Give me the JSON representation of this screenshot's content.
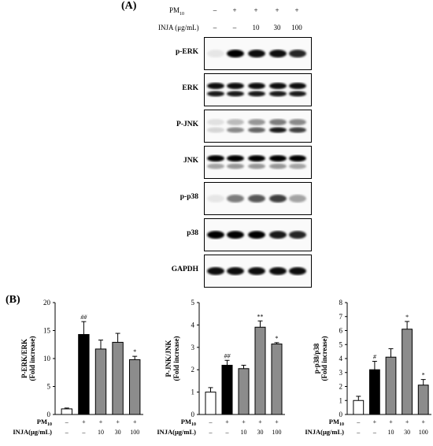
{
  "panel_a": {
    "letter": "(A)",
    "conditions": {
      "pm_label": "PM",
      "pm_sub": "10",
      "pm_values": [
        "–",
        "+",
        "+",
        "+",
        "+"
      ],
      "inja_label": "INJA (μg/mL)",
      "inja_values": [
        "–",
        "–",
        "10",
        "30",
        "100"
      ]
    },
    "blots": [
      {
        "label": "p-ERK",
        "bands": [
          0.08,
          1.0,
          0.95,
          0.95,
          0.85
        ],
        "band2": null
      },
      {
        "label": "ERK",
        "bands": [
          0.95,
          0.95,
          0.95,
          0.95,
          0.95
        ],
        "band2": [
          0.9,
          0.9,
          0.9,
          0.9,
          0.9
        ]
      },
      {
        "label": "P-JNK",
        "bands": [
          0.1,
          0.25,
          0.4,
          0.5,
          0.45
        ],
        "band2": [
          0.15,
          0.45,
          0.6,
          0.9,
          0.75
        ]
      },
      {
        "label": "JNK",
        "bands": [
          1.0,
          1.0,
          1.0,
          1.0,
          1.0
        ],
        "band2": [
          0.35,
          0.4,
          0.4,
          0.4,
          0.35
        ]
      },
      {
        "label": "p-p38",
        "bands": [
          0.08,
          0.5,
          0.65,
          0.75,
          0.35
        ],
        "band2": null
      },
      {
        "label": "p38",
        "bands": [
          1.0,
          1.0,
          1.0,
          0.9,
          0.85
        ],
        "band2": null
      },
      {
        "label": "GAPDH",
        "bands": [
          0.95,
          0.95,
          0.95,
          0.95,
          0.95
        ],
        "band2": null
      }
    ]
  },
  "panel_b": {
    "letter": "(B)",
    "x_pm_label": "PM",
    "x_pm_sub": "10",
    "x_inja_label": "INJA(μg/mL)",
    "pm_values": [
      "–",
      "+",
      "+",
      "+",
      "+"
    ],
    "inja_values": [
      "–",
      "–",
      "10",
      "30",
      "100"
    ],
    "bar_colors": [
      "#ffffff",
      "#000000",
      "#8c8c8c",
      "#8c8c8c",
      "#8c8c8c"
    ]
  },
  "chart_data": [
    {
      "type": "bar",
      "ylabel": "P-ERK/ERK",
      "ylabel2": "(Fold increase)",
      "ylim": [
        0,
        20
      ],
      "yticks": [
        0,
        5,
        10,
        15,
        20
      ],
      "values": [
        1.0,
        14.3,
        11.7,
        12.9,
        9.8
      ],
      "errors": [
        0.15,
        2.3,
        1.6,
        1.6,
        0.6
      ],
      "annotations": [
        "",
        "##",
        "",
        "",
        "*"
      ]
    },
    {
      "type": "bar",
      "ylabel": "P-JNK/JNK",
      "ylabel2": "(Fold increase)",
      "ylim": [
        0,
        5
      ],
      "yticks": [
        0,
        1,
        2,
        3,
        4,
        5
      ],
      "values": [
        1.0,
        2.2,
        2.05,
        3.9,
        3.15
      ],
      "errors": [
        0.2,
        0.22,
        0.15,
        0.28,
        0.06
      ],
      "annotations": [
        "",
        "##",
        "",
        "**",
        "*"
      ]
    },
    {
      "type": "bar",
      "ylabel": "p-p38/p38",
      "ylabel2": "(Fold increase)",
      "ylim": [
        0,
        8
      ],
      "yticks": [
        0,
        1,
        2,
        3,
        4,
        5,
        6,
        7,
        8
      ],
      "values": [
        1.0,
        3.2,
        4.1,
        6.1,
        2.1
      ],
      "errors": [
        0.3,
        0.6,
        0.6,
        0.55,
        0.4
      ],
      "annotations": [
        "",
        "#",
        "",
        "*",
        "*"
      ]
    }
  ]
}
